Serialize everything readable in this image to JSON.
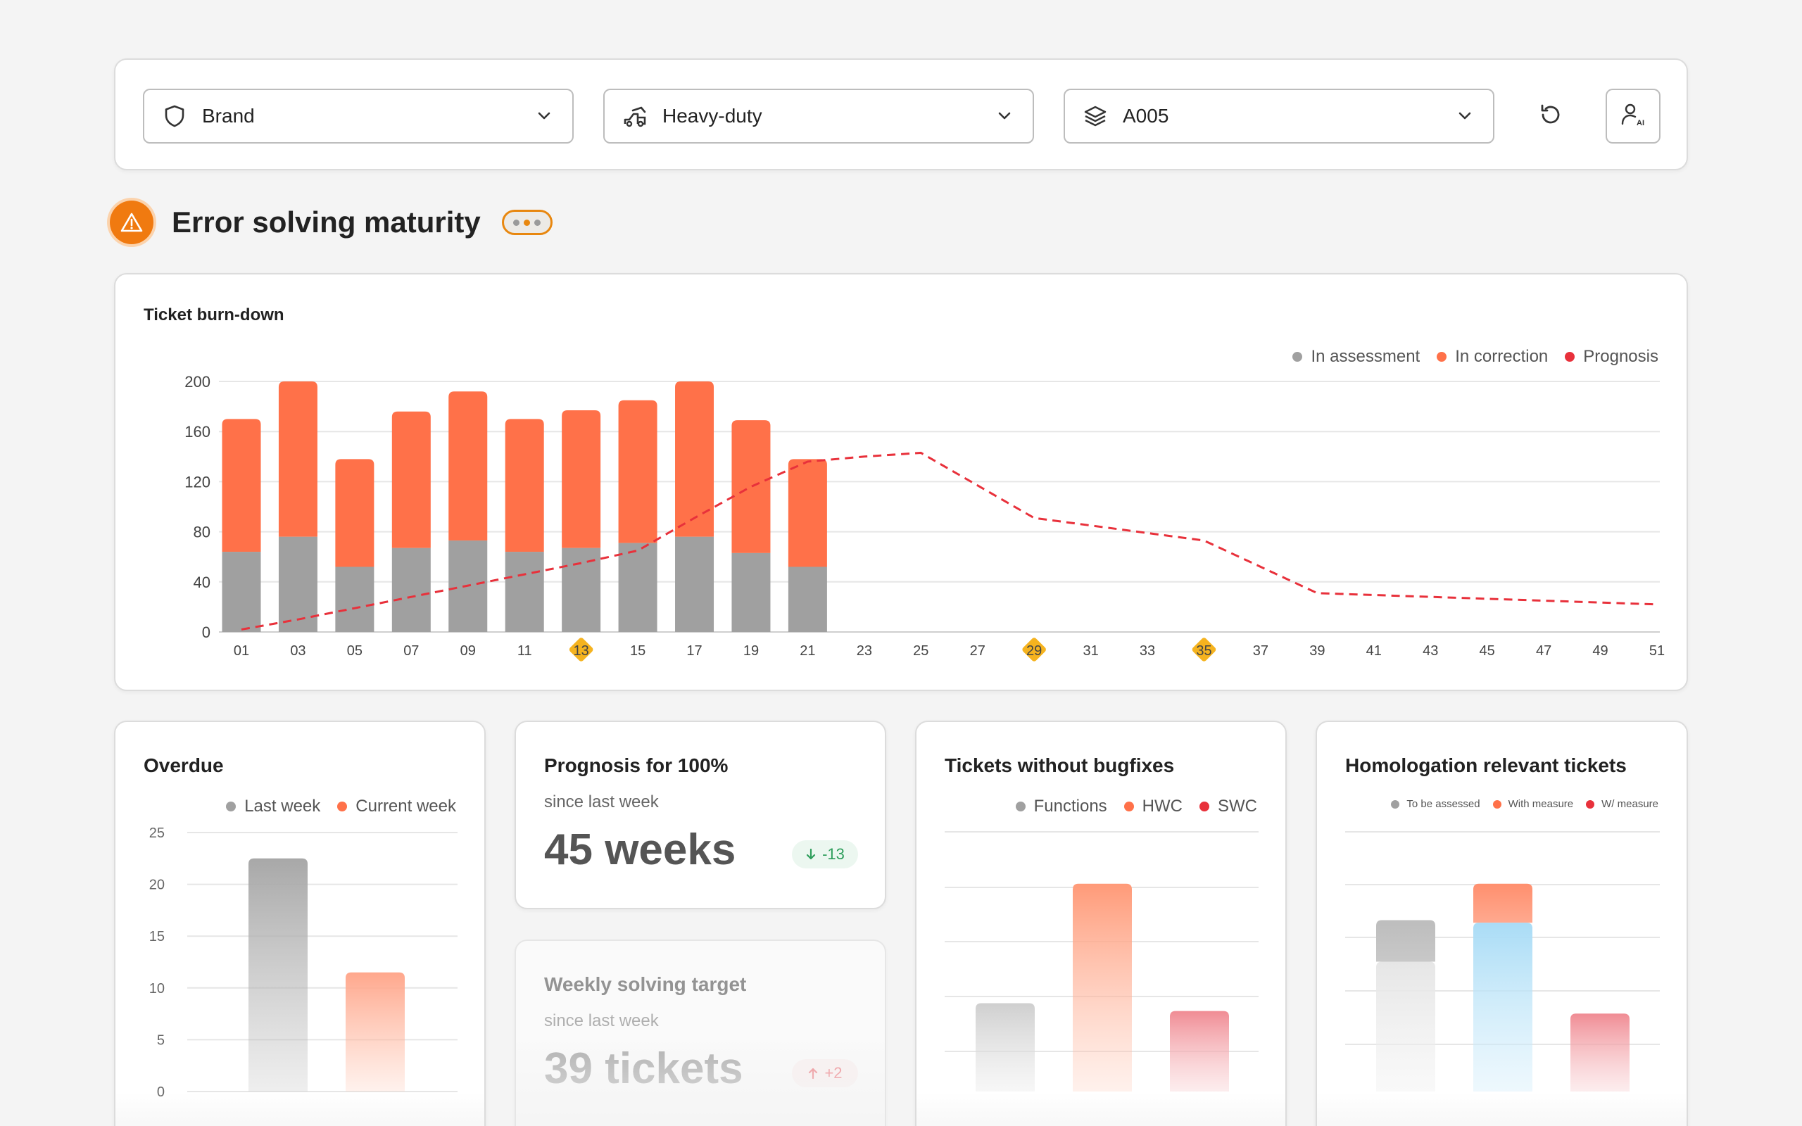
{
  "filters": {
    "brand": "Brand",
    "vehicle": "Heavy-duty",
    "model": "A005"
  },
  "icons": {
    "brand": "shield-icon",
    "vehicle": "truck-icon",
    "model": "layers-icon",
    "reset": "refresh-icon",
    "assistant": "ai-user-icon"
  },
  "section": {
    "title": "Error solving maturity"
  },
  "burndown": {
    "title": "Ticket burn-down",
    "legend": [
      "In assessment",
      "In correction",
      "Prognosis"
    ]
  },
  "overdue": {
    "title": "Overdue",
    "legend": [
      "Last week",
      "Current week"
    ]
  },
  "prognosis": {
    "title": "Prognosis for 100%",
    "sub": "since last week",
    "value": "45 weeks",
    "delta": "-13"
  },
  "weekly": {
    "title": "Weekly solving target",
    "sub": "since last week",
    "value": "39 tickets",
    "delta": "+2"
  },
  "bugfixes": {
    "title": "Tickets without bugfixes",
    "legend": [
      "Functions",
      "HWC",
      "SWC"
    ]
  },
  "homologation": {
    "title": "Homologation relevant tickets",
    "legend": [
      "To be assessed",
      "With measure",
      "W/ measure"
    ]
  },
  "colors": {
    "assessment": "#a0a0a0",
    "correction": "#ff7149",
    "prognosis": "#e8313b",
    "highlight": "#f5b31f",
    "delta_down": "#2e9e5b",
    "delta_up": "#e8313b"
  },
  "chart_data": [
    {
      "type": "bar",
      "title": "Ticket burn-down",
      "stacked": true,
      "ylim": [
        0,
        200
      ],
      "yticks": [
        0,
        40,
        80,
        120,
        160,
        200
      ],
      "categories": [
        "01",
        "03",
        "05",
        "07",
        "09",
        "11",
        "13",
        "15",
        "17",
        "19",
        "21",
        "23",
        "25",
        "27",
        "29",
        "31",
        "33",
        "35",
        "37",
        "39",
        "41",
        "43",
        "45",
        "47",
        "49",
        "51"
      ],
      "highlighted": [
        "13",
        "29",
        "35"
      ],
      "series": [
        {
          "name": "In assessment",
          "values": [
            64,
            76,
            52,
            67,
            73,
            64,
            67,
            71,
            76,
            63,
            52,
            null,
            null,
            null,
            null,
            null,
            null,
            null,
            null,
            null,
            null,
            null,
            null,
            null,
            null,
            null
          ]
        },
        {
          "name": "In correction",
          "values": [
            106,
            124,
            86,
            109,
            119,
            106,
            110,
            114,
            124,
            106,
            86,
            null,
            null,
            null,
            null,
            null,
            null,
            null,
            null,
            null,
            null,
            null,
            null,
            null,
            null,
            null
          ]
        }
      ],
      "prognosis": {
        "name": "Prognosis",
        "values": [
          2,
          10,
          19,
          28,
          37,
          46,
          55,
          65,
          91,
          116,
          136,
          140,
          143,
          null,
          91,
          null,
          null,
          73,
          null,
          31,
          null,
          null,
          null,
          null,
          null,
          22
        ]
      },
      "legend_position": "top-right",
      "grid": true
    },
    {
      "type": "bar",
      "title": "Overdue",
      "categories": [
        "Last week",
        "Current week"
      ],
      "values": [
        22.5,
        11.5
      ],
      "ylim": [
        0,
        25
      ],
      "yticks": [
        0,
        5,
        10,
        15,
        20,
        25
      ],
      "legend_position": "top"
    },
    {
      "type": "bar",
      "title": "Tickets without bugfixes",
      "categories": [
        "Functions",
        "HWC",
        "SWC"
      ],
      "values": [
        34,
        80,
        31
      ],
      "ylim": [
        0,
        100
      ],
      "legend_position": "top"
    },
    {
      "type": "bar",
      "title": "Homologation relevant tickets",
      "stacked": true,
      "categories": [
        "To be assessed",
        "With measure",
        "W/ measure"
      ],
      "series": [
        {
          "name": "To be assessed",
          "values": [
            50,
            65,
            30
          ]
        },
        {
          "name": "With measure",
          "values": [
            16,
            15,
            0
          ]
        }
      ],
      "ylim": [
        0,
        100
      ],
      "legend_position": "top"
    }
  ]
}
